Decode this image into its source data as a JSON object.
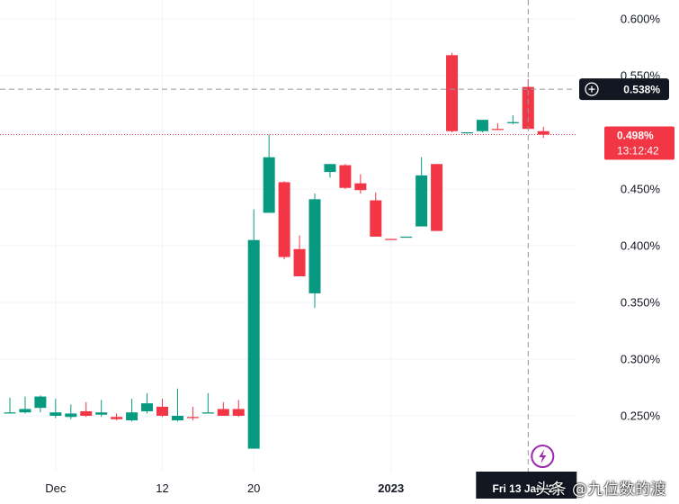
{
  "chart_data": {
    "type": "candlestick",
    "y_scale": "percent",
    "ylim": [
      0.21,
      0.615
    ],
    "y_ticks": [
      "0.600%",
      "0.550%",
      "0.500%",
      "0.450%",
      "0.400%",
      "0.350%",
      "0.300%",
      "0.250%"
    ],
    "y_tick_values": [
      0.6,
      0.55,
      0.5,
      0.45,
      0.4,
      0.35,
      0.3,
      0.25
    ],
    "x_ticks": [
      {
        "label": "Dec",
        "index": 3,
        "bold": false
      },
      {
        "label": "12",
        "index": 10,
        "bold": false
      },
      {
        "label": "20",
        "index": 16,
        "bold": false
      },
      {
        "label": "2023",
        "index": 25,
        "bold": true
      }
    ],
    "candles": [
      {
        "o": 0.252,
        "h": 0.266,
        "l": 0.252,
        "c": 0.253
      },
      {
        "o": 0.253,
        "h": 0.267,
        "l": 0.252,
        "c": 0.256
      },
      {
        "o": 0.257,
        "h": 0.268,
        "l": 0.253,
        "c": 0.267
      },
      {
        "o": 0.25,
        "h": 0.265,
        "l": 0.248,
        "c": 0.253
      },
      {
        "o": 0.249,
        "h": 0.26,
        "l": 0.247,
        "c": 0.252
      },
      {
        "o": 0.254,
        "h": 0.262,
        "l": 0.249,
        "c": 0.25
      },
      {
        "o": 0.251,
        "h": 0.264,
        "l": 0.249,
        "c": 0.253
      },
      {
        "o": 0.249,
        "h": 0.252,
        "l": 0.246,
        "c": 0.247
      },
      {
        "o": 0.246,
        "h": 0.265,
        "l": 0.245,
        "c": 0.253
      },
      {
        "o": 0.254,
        "h": 0.27,
        "l": 0.252,
        "c": 0.261
      },
      {
        "o": 0.258,
        "h": 0.265,
        "l": 0.249,
        "c": 0.25
      },
      {
        "o": 0.246,
        "h": 0.274,
        "l": 0.245,
        "c": 0.25
      },
      {
        "o": 0.249,
        "h": 0.258,
        "l": 0.246,
        "c": 0.248
      },
      {
        "o": 0.252,
        "h": 0.27,
        "l": 0.252,
        "c": 0.253
      },
      {
        "o": 0.256,
        "h": 0.262,
        "l": 0.25,
        "c": 0.25
      },
      {
        "o": 0.256,
        "h": 0.264,
        "l": 0.249,
        "c": 0.25
      },
      {
        "o": 0.221,
        "h": 0.432,
        "l": 0.221,
        "c": 0.405
      },
      {
        "o": 0.429,
        "h": 0.498,
        "l": 0.429,
        "c": 0.478
      },
      {
        "o": 0.456,
        "h": 0.457,
        "l": 0.388,
        "c": 0.39
      },
      {
        "o": 0.397,
        "h": 0.409,
        "l": 0.373,
        "c": 0.373
      },
      {
        "o": 0.358,
        "h": 0.446,
        "l": 0.345,
        "c": 0.441
      },
      {
        "o": 0.465,
        "h": 0.472,
        "l": 0.46,
        "c": 0.472
      },
      {
        "o": 0.471,
        "h": 0.472,
        "l": 0.45,
        "c": 0.451
      },
      {
        "o": 0.455,
        "h": 0.463,
        "l": 0.446,
        "c": 0.449
      },
      {
        "o": 0.44,
        "h": 0.447,
        "l": 0.408,
        "c": 0.408
      },
      {
        "o": 0.406,
        "h": 0.406,
        "l": 0.405,
        "c": 0.405
      },
      {
        "o": 0.408,
        "h": 0.408,
        "l": 0.407,
        "c": 0.408
      },
      {
        "o": 0.417,
        "h": 0.478,
        "l": 0.417,
        "c": 0.462
      },
      {
        "o": 0.472,
        "h": 0.472,
        "l": 0.413,
        "c": 0.413
      },
      {
        "o": 0.568,
        "h": 0.57,
        "l": 0.5,
        "c": 0.501
      },
      {
        "o": 0.5,
        "h": 0.5,
        "l": 0.499,
        "c": 0.5
      },
      {
        "o": 0.501,
        "h": 0.511,
        "l": 0.5,
        "c": 0.511
      },
      {
        "o": 0.503,
        "h": 0.508,
        "l": 0.502,
        "c": 0.502
      },
      {
        "o": 0.508,
        "h": 0.515,
        "l": 0.507,
        "c": 0.509
      },
      {
        "o": 0.54,
        "h": 0.547,
        "l": 0.503,
        "c": 0.503
      },
      {
        "o": 0.501,
        "h": 0.505,
        "l": 0.495,
        "c": 0.498
      }
    ],
    "colors": {
      "up": "#089981",
      "down": "#f23645"
    },
    "crosshair": {
      "price": 0.538,
      "price_label": "0.538%",
      "candle_index": 34,
      "date_label": "Fri 13 Jan '23"
    },
    "last_price": {
      "price": 0.498,
      "label": "0.498%",
      "countdown": "13:12:42"
    }
  },
  "watermark": "头条 @九位数的渡"
}
